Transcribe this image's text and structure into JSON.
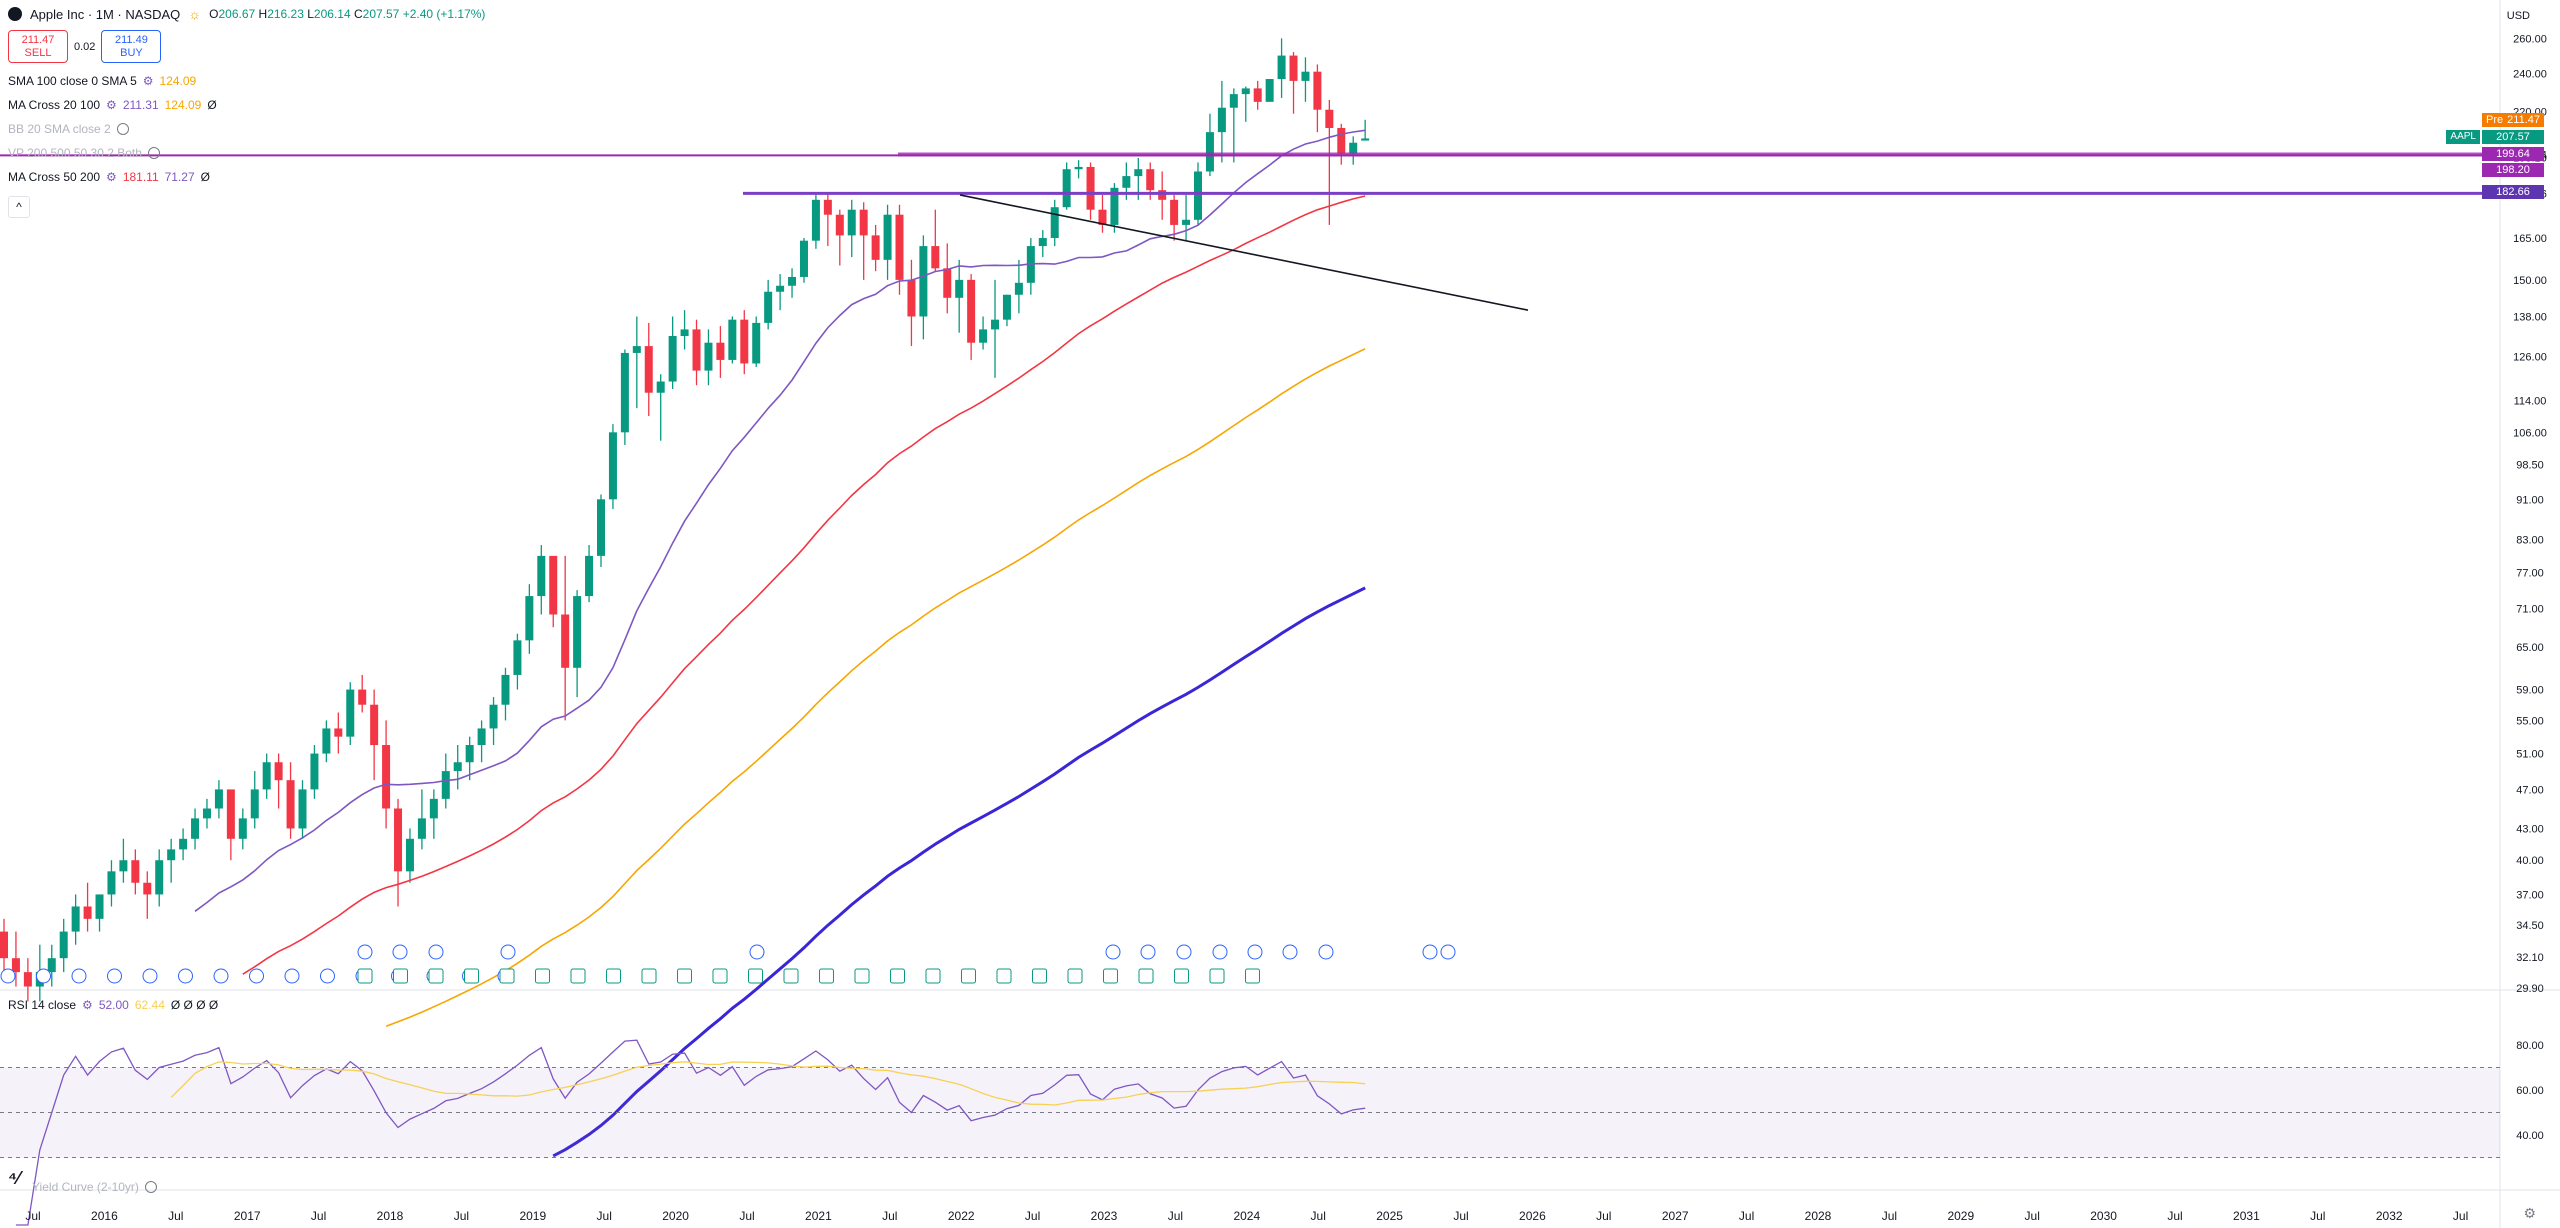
{
  "header": {
    "title": "Apple Inc · 1M · NASDAQ",
    "open_label": "O",
    "open": "206.67",
    "high_label": "H",
    "high": "216.23",
    "low_label": "L",
    "low": "206.14",
    "close_label": "C",
    "close": "207.57",
    "change": "+2.40 (+1.17%)"
  },
  "trade": {
    "sell_price": "211.47",
    "sell_label": "SELL",
    "spread": "0.02",
    "buy_price": "211.49",
    "buy_label": "BUY"
  },
  "indicators": [
    {
      "name": "SMA 100 close 0 SMA 5",
      "v1": "124.09",
      "v1_color": "#f7a600",
      "v2": "",
      "v2_color": "",
      "v3": ""
    },
    {
      "name": "MA Cross 20 100",
      "v1": "211.31",
      "v1_color": "#7e57c2",
      "v2": "124.09",
      "v2_color": "#f7a600",
      "v3": "Ø"
    },
    {
      "name": "BB 20 SMA close 2",
      "v1": "",
      "v1_color": "",
      "v2": "",
      "v2_color": "",
      "v3": ""
    },
    {
      "name": "VP 200 500 50 30 2 Both",
      "v1": "",
      "v1_color": "",
      "v2": "",
      "v2_color": "",
      "v3": ""
    },
    {
      "name": "MA Cross 50 200",
      "v1": "181.11",
      "v1_color": "#f23645",
      "v2": "71.27",
      "v2_color": "#7e57c2",
      "v3": "Ø"
    }
  ],
  "rsi": {
    "label": "RSI 14 close",
    "v1": "52.00",
    "v2": "62.44",
    "rest": "Ø Ø Ø Ø"
  },
  "yield_curve": {
    "label": "Yield Curve (2-10yr)"
  },
  "axis": {
    "currency": "USD",
    "price_ticks": [
      "260.00",
      "240.00",
      "220.00",
      "199.64",
      "198.20",
      "182.66",
      "165.00",
      "150.00",
      "138.00",
      "126.00",
      "114.00",
      "106.00",
      "98.50",
      "91.00",
      "83.00",
      "77.00",
      "71.00",
      "65.00",
      "59.00",
      "55.00",
      "51.00",
      "47.00",
      "43.00",
      "40.00",
      "37.00",
      "34.50",
      "32.10",
      "29.90"
    ],
    "rsi_ticks": [
      "80.00",
      "60.00",
      "40.00"
    ],
    "time_labels": [
      "Jul",
      "2016",
      "Jul",
      "2017",
      "Jul",
      "2018",
      "Jul",
      "2019",
      "Jul",
      "2020",
      "Jul",
      "2021",
      "Jul",
      "2022",
      "Jul",
      "2023",
      "Jul",
      "2024",
      "Jul",
      "2025",
      "Jul",
      "2026",
      "Jul",
      "2027",
      "Jul",
      "2028",
      "Jul",
      "2029",
      "Jul",
      "2030",
      "Jul",
      "2031",
      "Jul",
      "2032",
      "Jul"
    ]
  },
  "price_tags": {
    "pre_label": "Pre",
    "pre": "211.47",
    "aapl_label": "AAPL",
    "last": "207.57",
    "level1": "199.64",
    "level2": "198.20",
    "level3": "182.66"
  },
  "colors": {
    "up": "#089981",
    "down": "#f23645",
    "ma20": "#7e57c2",
    "ma50": "#f23645",
    "ma100": "#f7a600",
    "ma200": "#3a26d6",
    "hline": "#9c27b0",
    "hline2": "#7b3fc4",
    "rsi": "#7e57c2",
    "rsi_ma": "#f7d154"
  },
  "chart_data": {
    "type": "candlestick",
    "title": "Apple Inc · 1M · NASDAQ",
    "scale": "log",
    "ylim": [
      29.9,
      265
    ],
    "x_start": "2015-01",
    "candles": [
      [
        34,
        35,
        31,
        32
      ],
      [
        32,
        34,
        30,
        31
      ],
      [
        31,
        32,
        29,
        30
      ],
      [
        30,
        33,
        29,
        31
      ],
      [
        31,
        33,
        30,
        32
      ],
      [
        32,
        35,
        31,
        34
      ],
      [
        34,
        37,
        33,
        36
      ],
      [
        36,
        38,
        34,
        35
      ],
      [
        35,
        37,
        34,
        37
      ],
      [
        37,
        40,
        36,
        39
      ],
      [
        39,
        42,
        38,
        40
      ],
      [
        40,
        41,
        37,
        38
      ],
      [
        38,
        39,
        35,
        37
      ],
      [
        37,
        41,
        36,
        40
      ],
      [
        40,
        42,
        38,
        41
      ],
      [
        41,
        43,
        40,
        42
      ],
      [
        42,
        45,
        41,
        44
      ],
      [
        44,
        46,
        43,
        45
      ],
      [
        45,
        48,
        44,
        47
      ],
      [
        47,
        46,
        40,
        42
      ],
      [
        42,
        45,
        41,
        44
      ],
      [
        44,
        49,
        43,
        47
      ],
      [
        47,
        51,
        46,
        50
      ],
      [
        50,
        51,
        45,
        48
      ],
      [
        48,
        50,
        42,
        43
      ],
      [
        43,
        48,
        42,
        47
      ],
      [
        47,
        52,
        46,
        51
      ],
      [
        51,
        55,
        50,
        54
      ],
      [
        54,
        56,
        51,
        53
      ],
      [
        53,
        60,
        52,
        59
      ],
      [
        59,
        61,
        56,
        57
      ],
      [
        57,
        59,
        48,
        52
      ],
      [
        52,
        55,
        43,
        45
      ],
      [
        45,
        46,
        36,
        39
      ],
      [
        39,
        43,
        38,
        42
      ],
      [
        42,
        47,
        41,
        44
      ],
      [
        44,
        47,
        42,
        46
      ],
      [
        46,
        51,
        45,
        49
      ],
      [
        49,
        52,
        47,
        50
      ],
      [
        50,
        53,
        48,
        52
      ],
      [
        52,
        55,
        50,
        54
      ],
      [
        54,
        58,
        52,
        57
      ],
      [
        57,
        62,
        55,
        61
      ],
      [
        61,
        67,
        59,
        66
      ],
      [
        66,
        75,
        64,
        73
      ],
      [
        73,
        82,
        70,
        80
      ],
      [
        80,
        78,
        68,
        70
      ],
      [
        70,
        80,
        55,
        62
      ],
      [
        62,
        74,
        58,
        73
      ],
      [
        73,
        82,
        72,
        80
      ],
      [
        80,
        92,
        78,
        91
      ],
      [
        91,
        108,
        89,
        106
      ],
      [
        106,
        128,
        103,
        127
      ],
      [
        127,
        138,
        112,
        129
      ],
      [
        129,
        136,
        110,
        116
      ],
      [
        116,
        121,
        104,
        119
      ],
      [
        119,
        138,
        117,
        132
      ],
      [
        132,
        140,
        128,
        134
      ],
      [
        134,
        137,
        118,
        122
      ],
      [
        122,
        134,
        118,
        130
      ],
      [
        130,
        135,
        120,
        125
      ],
      [
        125,
        138,
        124,
        137
      ],
      [
        137,
        140,
        121,
        124
      ],
      [
        124,
        138,
        123,
        136
      ],
      [
        136,
        150,
        134,
        146
      ],
      [
        146,
        152,
        140,
        148
      ],
      [
        148,
        154,
        144,
        151
      ],
      [
        151,
        165,
        149,
        164
      ],
      [
        164,
        182,
        161,
        180
      ],
      [
        180,
        183,
        162,
        174
      ],
      [
        174,
        176,
        155,
        166
      ],
      [
        166,
        180,
        158,
        176
      ],
      [
        176,
        179,
        150,
        166
      ],
      [
        166,
        170,
        153,
        157
      ],
      [
        157,
        178,
        150,
        174
      ],
      [
        174,
        178,
        145,
        150
      ],
      [
        150,
        157,
        129,
        138
      ],
      [
        138,
        166,
        131,
        162
      ],
      [
        162,
        176,
        153,
        154
      ],
      [
        154,
        163,
        139,
        144
      ],
      [
        144,
        157,
        133,
        150
      ],
      [
        150,
        152,
        125,
        130
      ],
      [
        130,
        138,
        128,
        134
      ],
      [
        134,
        150,
        120,
        137
      ],
      [
        137,
        145,
        135,
        145
      ],
      [
        145,
        157,
        139,
        149
      ],
      [
        149,
        165,
        145,
        162
      ],
      [
        162,
        168,
        158,
        165
      ],
      [
        165,
        180,
        162,
        177
      ],
      [
        177,
        196,
        176,
        193
      ],
      [
        193,
        197,
        189,
        194
      ],
      [
        194,
        196,
        172,
        176
      ],
      [
        176,
        182,
        167,
        170
      ],
      [
        170,
        187,
        167,
        185
      ],
      [
        185,
        196,
        180,
        190
      ],
      [
        190,
        198,
        180,
        193
      ],
      [
        193,
        196,
        180,
        184
      ],
      [
        184,
        192,
        172,
        180
      ],
      [
        180,
        182,
        164,
        170
      ],
      [
        170,
        182,
        164,
        172
      ],
      [
        172,
        196,
        170,
        192
      ],
      [
        192,
        219,
        190,
        210
      ],
      [
        210,
        236,
        196,
        222
      ],
      [
        222,
        232,
        196,
        229
      ],
      [
        229,
        233,
        215,
        232
      ],
      [
        232,
        236,
        221,
        225
      ],
      [
        225,
        237,
        226,
        237
      ],
      [
        237,
        260,
        227,
        250
      ],
      [
        250,
        252,
        219,
        236
      ],
      [
        236,
        249,
        225,
        241
      ],
      [
        241,
        245,
        210,
        221
      ],
      [
        221,
        226,
        170,
        212
      ],
      [
        212,
        214,
        195,
        200
      ],
      [
        200,
        208,
        195,
        205
      ],
      [
        206,
        216,
        206,
        207
      ]
    ],
    "ma20_last": 211.31,
    "ma50_last": 181.11,
    "ma100_last": 124.09,
    "ma200_last": 71.27,
    "horizontal_levels": [
      199.64,
      198.2,
      182.66
    ],
    "trendline": [
      [
        "2021-12",
        182
      ],
      [
        "2027-01",
        140
      ]
    ],
    "rsi": {
      "ylim": [
        20,
        100
      ],
      "overbought": 70,
      "oversold": 30,
      "last": 52.0,
      "ma_last": 62.44
    }
  }
}
